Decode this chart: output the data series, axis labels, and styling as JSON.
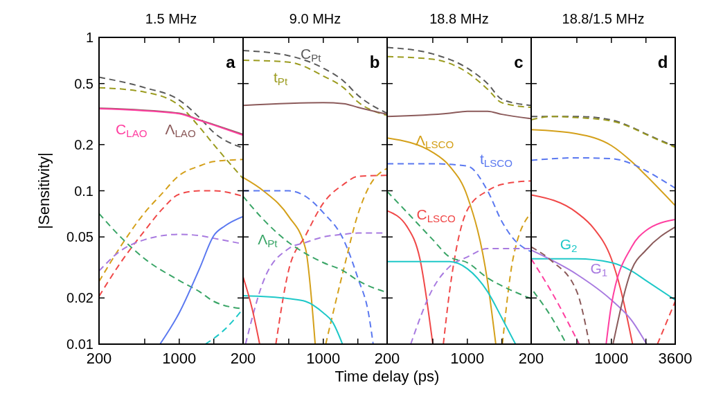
{
  "chart_data": [
    {
      "type": "line",
      "title": "1.5 MHz",
      "ylabel": "|Sensitivity|",
      "log": "xy",
      "xlim": [
        200,
        3600
      ],
      "ylim": [
        0.01,
        1
      ],
      "xticks": [
        {
          "value": 200,
          "label": "200"
        },
        {
          "value": 500,
          "label": null
        },
        {
          "value": 1000,
          "label": "1000"
        },
        {
          "value": 2000,
          "label": null
        },
        {
          "value": 3600,
          "label": null
        }
      ],
      "yticks": [
        1,
        0.5,
        0.2,
        0.1,
        0.05,
        0.02,
        0.01
      ],
      "annotations": [
        "a"
      ],
      "series": [
        {
          "color": "#5a5a5a",
          "line_style": "dashed",
          "x": [
            200,
            500,
            1000,
            1500,
            2000,
            3600
          ],
          "values": [
            0.55,
            0.47,
            0.39,
            0.3,
            0.24,
            0.19
          ]
        },
        {
          "color": "#9b9b1e",
          "line_style": "dashed",
          "x": [
            200,
            500,
            1000,
            1500,
            2000,
            3600
          ],
          "values": [
            0.47,
            0.44,
            0.36,
            0.26,
            0.2,
            0.12
          ]
        },
        {
          "name": "Λ$_{LAO}$",
          "color": "#8b5a5a",
          "line_style": "solid",
          "x": [
            200,
            1000,
            1500,
            2000,
            3600
          ],
          "values": [
            0.345,
            0.32,
            0.29,
            0.27,
            0.233
          ]
        },
        {
          "name": "C$_{LAO}$",
          "color": "#ff3fa0",
          "line_style": "solid",
          "x": [
            200,
            1000,
            1500,
            2000,
            3600
          ],
          "values": [
            0.343,
            0.318,
            0.288,
            0.268,
            0.23
          ]
        },
        {
          "color": "#d4a01a",
          "line_style": "dashed",
          "x": [
            200,
            300,
            500,
            700,
            1000,
            1500,
            2000,
            3600
          ],
          "values": [
            0.0256,
            0.042,
            0.072,
            0.095,
            0.126,
            0.145,
            0.155,
            0.16
          ]
        },
        {
          "color": "#f04848",
          "line_style": "dashed",
          "x": [
            200,
            300,
            500,
            700,
            1000,
            1500,
            2000,
            3600
          ],
          "values": [
            0.0205,
            0.033,
            0.055,
            0.075,
            0.095,
            0.1,
            0.1,
            0.092
          ]
        },
        {
          "color": "#a87ae0",
          "line_style": "dashed",
          "x": [
            200,
            300,
            500,
            1000,
            1500,
            2000,
            3600
          ],
          "values": [
            0.03,
            0.04,
            0.048,
            0.052,
            0.051,
            0.049,
            0.045
          ]
        },
        {
          "color": "#3aa567",
          "line_style": "dashed",
          "x": [
            200,
            300,
            500,
            1000,
            1500,
            2000,
            3600
          ],
          "values": [
            0.071,
            0.051,
            0.036,
            0.026,
            0.022,
            0.019,
            0.017
          ]
        },
        {
          "color": "#5a78f0",
          "line_style": "solid",
          "x": [
            680,
            1000,
            1500,
            2000,
            2500,
            3600
          ],
          "values": [
            0.01,
            0.016,
            0.031,
            0.051,
            0.059,
            0.068
          ]
        },
        {
          "color": "#1ec8c8",
          "line_style": "dashed",
          "x": [
            1690,
            2500,
            3600
          ],
          "values": [
            0.01,
            0.0125,
            0.017
          ]
        }
      ]
    },
    {
      "type": "line",
      "title": "9.0 MHz",
      "xlabel": "Time delay (ps)",
      "log": "xy",
      "xlim": [
        200,
        3600
      ],
      "ylim": [
        0.01,
        1
      ],
      "tick_labels": "x",
      "xticks": [
        {
          "value": 200,
          "label": "200"
        },
        {
          "value": 500,
          "label": null
        },
        {
          "value": 1000,
          "label": "1000"
        },
        {
          "value": 2000,
          "label": null
        },
        {
          "value": 3600,
          "label": null
        }
      ],
      "yticks": [
        1,
        0.5,
        0.2,
        0.1,
        0.05,
        0.02,
        0.01
      ],
      "annotations": [
        "b"
      ],
      "series": [
        {
          "name": "C$_{Pt}$",
          "color": "#5a5a5a",
          "line_style": "dashed",
          "x": [
            200,
            500,
            1000,
            1500,
            2000,
            3600
          ],
          "values": [
            0.82,
            0.76,
            0.63,
            0.52,
            0.42,
            0.32
          ]
        },
        {
          "name": "t$_{Pt}$",
          "color": "#9b9b1e",
          "line_style": "dashed",
          "x": [
            200,
            500,
            1000,
            1500,
            2000,
            3600
          ],
          "values": [
            0.71,
            0.69,
            0.56,
            0.47,
            0.38,
            0.31
          ]
        },
        {
          "color": "#8b5a5a",
          "line_style": "solid",
          "x": [
            200,
            1000,
            1500,
            2000,
            3600
          ],
          "values": [
            0.36,
            0.375,
            0.37,
            0.35,
            0.315
          ]
        },
        {
          "color": "#d4a01a",
          "line_style": "solid",
          "x": [
            200,
            300,
            500,
            700,
            850
          ],
          "values": [
            0.122,
            0.1,
            0.068,
            0.042,
            0.01
          ]
        },
        {
          "color": "#5a78f0",
          "line_style": "dashed",
          "x": [
            200,
            500,
            700,
            1000,
            1500,
            2000,
            2500,
            2720
          ],
          "values": [
            0.1,
            0.1,
            0.092,
            0.072,
            0.048,
            0.027,
            0.0153,
            0.01
          ]
        },
        {
          "color": "#f04848",
          "line_style": "dashed",
          "x": [
            386,
            500,
            700,
            1000,
            1500,
            2000,
            3600
          ],
          "values": [
            0.01,
            0.0305,
            0.051,
            0.083,
            0.11,
            0.124,
            0.126
          ]
        },
        {
          "color": "#d4a01a",
          "line_style": "dashed",
          "x": [
            1050,
            1500,
            2000,
            2500,
            3600
          ],
          "values": [
            0.01,
            0.0305,
            0.07,
            0.106,
            0.14
          ]
        },
        {
          "color": "#a87ae0",
          "line_style": "dashed",
          "x": [
            210,
            300,
            500,
            700,
            1000,
            1500,
            2000,
            3600
          ],
          "values": [
            0.01,
            0.0256,
            0.042,
            0.046,
            0.05,
            0.052,
            0.053,
            0.053
          ]
        },
        {
          "name": "Λ$_{Pt}$",
          "color": "#3aa567",
          "line_style": "dashed",
          "x": [
            200,
            300,
            500,
            700,
            1000,
            1500,
            2000,
            3600
          ],
          "values": [
            0.092,
            0.065,
            0.046,
            0.039,
            0.034,
            0.03,
            0.026,
            0.0217
          ]
        },
        {
          "color": "#1ec8c8",
          "line_style": "solid",
          "x": [
            200,
            500,
            700,
            1000,
            1200,
            1470
          ],
          "values": [
            0.0207,
            0.0198,
            0.019,
            0.016,
            0.014,
            0.01
          ]
        },
        {
          "color": "#f04848",
          "line_style": "solid",
          "x": [
            200,
            240,
            279
          ],
          "values": [
            0.0275,
            0.017,
            0.01
          ]
        }
      ]
    },
    {
      "type": "line",
      "title": "18.8 MHz",
      "log": "xy",
      "xlim": [
        200,
        3600
      ],
      "ylim": [
        0.01,
        1
      ],
      "tick_labels": "x",
      "xticks": [
        {
          "value": 200,
          "label": "200"
        },
        {
          "value": 500,
          "label": null
        },
        {
          "value": 1000,
          "label": "1000"
        },
        {
          "value": 2000,
          "label": null
        },
        {
          "value": 3600,
          "label": null
        }
      ],
      "yticks": [
        1,
        0.5,
        0.2,
        0.1,
        0.05,
        0.02,
        0.01
      ],
      "annotations": [
        "c"
      ],
      "series": [
        {
          "color": "#5a5a5a",
          "line_style": "dashed",
          "x": [
            200,
            500,
            1000,
            1500,
            2000,
            3600
          ],
          "values": [
            0.86,
            0.78,
            0.63,
            0.5,
            0.395,
            0.36
          ]
        },
        {
          "color": "#9b9b1e",
          "line_style": "dashed",
          "x": [
            200,
            500,
            1000,
            1500,
            2000,
            3600
          ],
          "values": [
            0.75,
            0.72,
            0.59,
            0.46,
            0.375,
            0.35
          ]
        },
        {
          "color": "#8b5a5a",
          "line_style": "solid",
          "x": [
            200,
            700,
            1000,
            1500,
            2000,
            3600
          ],
          "values": [
            0.305,
            0.32,
            0.33,
            0.33,
            0.315,
            0.295
          ]
        },
        {
          "name": "Λ$_{LSCO}$",
          "color": "#d4a01a",
          "line_style": "solid",
          "x": [
            200,
            500,
            700,
            1000,
            1500,
            1770
          ],
          "values": [
            0.221,
            0.178,
            0.145,
            0.092,
            0.0256,
            0.01
          ]
        },
        {
          "name": "t$_{LSCO}$",
          "color": "#5a78f0",
          "line_style": "dashed",
          "x": [
            200,
            500,
            1000,
            1500,
            2000,
            2500,
            3600
          ],
          "values": [
            0.15,
            0.15,
            0.145,
            0.1,
            0.063,
            0.049,
            0.04
          ]
        },
        {
          "name": "C$_{LSCO}$",
          "color": "#f04848",
          "line_style": "solid",
          "x": [
            200,
            300,
            386,
            500
          ],
          "values": [
            0.074,
            0.058,
            0.036,
            0.01
          ]
        },
        {
          "color": "#f04848",
          "line_style": "dashed",
          "x": [
            618,
            700,
            1000,
            1500,
            2000,
            3600
          ],
          "values": [
            0.01,
            0.022,
            0.075,
            0.1,
            0.11,
            0.116
          ]
        },
        {
          "color": "#d4a01a",
          "line_style": "dashed",
          "x": [
            2020,
            2500,
            3600
          ],
          "values": [
            0.01,
            0.036,
            0.072
          ]
        },
        {
          "color": "#a87ae0",
          "line_style": "dashed",
          "x": [
            321,
            500,
            700,
            1000,
            1500,
            2000,
            3600
          ],
          "values": [
            0.01,
            0.023,
            0.032,
            0.037,
            0.042,
            0.042,
            0.042
          ]
        },
        {
          "color": "#3aa567",
          "line_style": "dashed",
          "x": [
            200,
            300,
            500,
            700,
            1000,
            1500,
            2000,
            3600
          ],
          "values": [
            0.099,
            0.072,
            0.048,
            0.037,
            0.034,
            0.027,
            0.024,
            0.0198
          ]
        },
        {
          "color": "#1ec8c8",
          "line_style": "solid",
          "x": [
            200,
            700,
            1000,
            1500,
            2000,
            2630
          ],
          "values": [
            0.0345,
            0.0345,
            0.031,
            0.022,
            0.0148,
            0.01
          ]
        }
      ]
    },
    {
      "type": "line",
      "title": "18.8/1.5 MHz",
      "log": "xy",
      "xlim": [
        200,
        3600
      ],
      "ylim": [
        0.01,
        1
      ],
      "tick_labels": "x",
      "xticks": [
        {
          "value": 200,
          "label": "200"
        },
        {
          "value": 500,
          "label": null
        },
        {
          "value": 1000,
          "label": "1000"
        },
        {
          "value": 2000,
          "label": null
        },
        {
          "value": 3600,
          "label": "3600"
        }
      ],
      "yticks": [
        1,
        0.5,
        0.2,
        0.1,
        0.05,
        0.02,
        0.01
      ],
      "annotations": [
        "d"
      ],
      "series": [
        {
          "color": "#5a5a5a",
          "line_style": "dashed",
          "x": [
            200,
            500,
            1000,
            1500,
            2000,
            3600
          ],
          "values": [
            0.305,
            0.305,
            0.29,
            0.26,
            0.235,
            0.194
          ]
        },
        {
          "color": "#9b9b1e",
          "line_style": "dashed",
          "x": [
            200,
            300,
            500,
            1000,
            1500,
            2000,
            3600
          ],
          "values": [
            0.29,
            0.305,
            0.3,
            0.285,
            0.258,
            0.233,
            0.192
          ]
        },
        {
          "color": "#d4a01a",
          "line_style": "solid",
          "x": [
            200,
            500,
            1000,
            1500,
            2000,
            3600
          ],
          "values": [
            0.25,
            0.235,
            0.197,
            0.155,
            0.126,
            0.08
          ]
        },
        {
          "color": "#5a78f0",
          "line_style": "dashed",
          "x": [
            200,
            500,
            1000,
            1500,
            2000,
            3600
          ],
          "values": [
            0.158,
            0.164,
            0.162,
            0.15,
            0.135,
            0.104
          ]
        },
        {
          "color": "#f04848",
          "line_style": "solid",
          "x": [
            200,
            500,
            700,
            1000,
            1200,
            1530
          ],
          "values": [
            0.094,
            0.072,
            0.057,
            0.036,
            0.023,
            0.01
          ]
        },
        {
          "name": "G$_{2}$",
          "color": "#1ec8c8",
          "line_style": "solid",
          "x": [
            200,
            500,
            1000,
            1500,
            2000,
            3600
          ],
          "values": [
            0.036,
            0.036,
            0.034,
            0.03,
            0.026,
            0.0194
          ]
        },
        {
          "name": "G$_{1}$",
          "color": "#a87ae0",
          "line_style": "solid",
          "x": [
            200,
            500,
            1000,
            1500,
            2030
          ],
          "values": [
            0.041,
            0.0285,
            0.0194,
            0.0143,
            0.01
          ]
        },
        {
          "color": "#ff3fa0",
          "line_style": "solid",
          "x": [
            900,
            1000,
            1500,
            2000,
            3600
          ],
          "values": [
            0.01,
            0.018,
            0.043,
            0.055,
            0.065
          ]
        },
        {
          "color": "#8b5a5a",
          "line_style": "solid",
          "x": [
            1033,
            1500,
            2000,
            3600
          ],
          "values": [
            0.01,
            0.0305,
            0.041,
            0.058
          ]
        },
        {
          "color": "#ff3fa0",
          "line_style": "dashed",
          "x": [
            200,
            300,
            524
          ],
          "values": [
            0.036,
            0.022,
            0.01
          ]
        },
        {
          "color": "#8b5a5a",
          "line_style": "dashed",
          "x": [
            200,
            300,
            500,
            644
          ],
          "values": [
            0.043,
            0.035,
            0.022,
            0.01
          ]
        },
        {
          "color": "#3aa567",
          "line_style": "dashed",
          "x": [
            210,
            300,
            406
          ],
          "values": [
            0.022,
            0.015,
            0.01
          ]
        },
        {
          "color": "#f04848",
          "line_style": "dashed",
          "x": [
            2520,
            3600
          ],
          "values": [
            0.01,
            0.019
          ]
        }
      ]
    }
  ]
}
